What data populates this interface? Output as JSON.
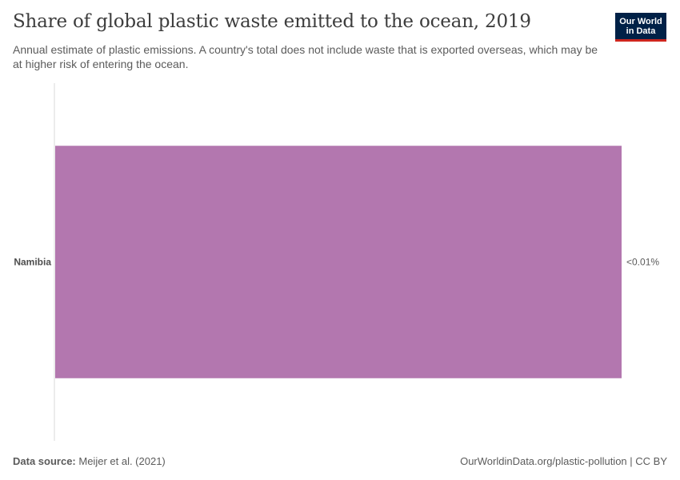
{
  "header": {
    "title": "Share of global plastic waste emitted to the ocean, 2019",
    "subtitle": "Annual estimate of plastic emissions. A country's total does not include waste that is exported overseas, which may be at higher risk of entering the ocean."
  },
  "logo": {
    "line1": "Our World",
    "line2": "in Data",
    "background_color": "#002147",
    "accent_color": "#ce261e"
  },
  "chart_data": {
    "type": "bar",
    "orientation": "horizontal",
    "categories": [
      "Namibia"
    ],
    "values": [
      0.0
    ],
    "value_labels": [
      "<0.01%"
    ],
    "unit": "%",
    "title": "Share of global plastic waste emitted to the ocean, 2019",
    "xlabel": "",
    "ylabel": "",
    "grid": false,
    "bar_color": "#b377af"
  },
  "footer": {
    "source_label": "Data source:",
    "source_text": "Meijer et al. (2021)",
    "credit": "OurWorldinData.org/plastic-pollution | CC BY"
  }
}
